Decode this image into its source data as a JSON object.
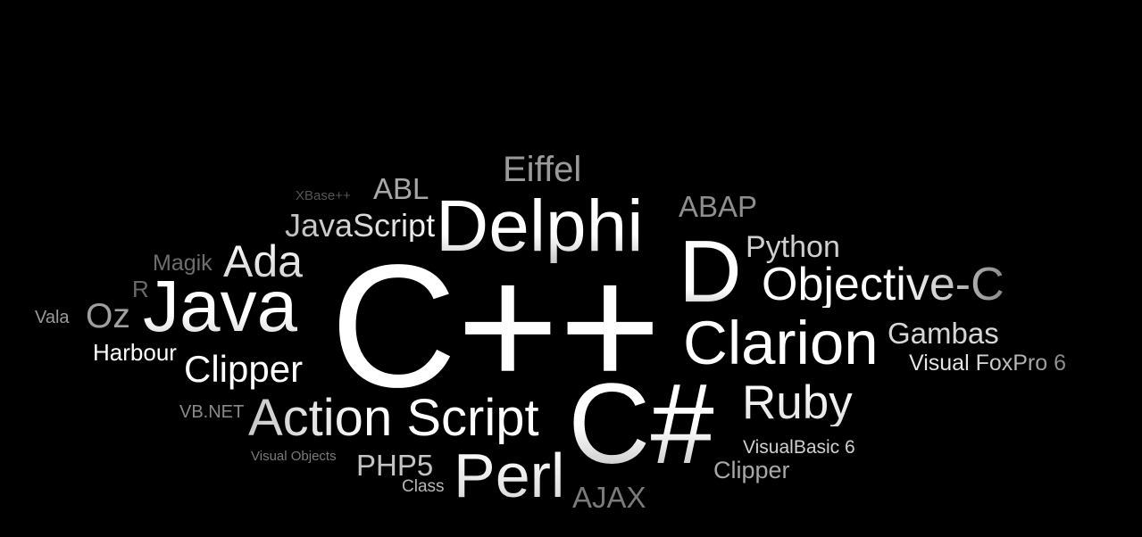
{
  "words": [
    {
      "id": "eiffel",
      "text": "Eiffel"
    },
    {
      "id": "xbase",
      "text": "XBase++"
    },
    {
      "id": "abl",
      "text": "ABL"
    },
    {
      "id": "delphi",
      "text": "Delphi"
    },
    {
      "id": "abap",
      "text": "ABAP"
    },
    {
      "id": "javascript",
      "text": "JavaScript"
    },
    {
      "id": "python",
      "text": "Python"
    },
    {
      "id": "magik",
      "text": "Magik"
    },
    {
      "id": "ada",
      "text": "Ada"
    },
    {
      "id": "d",
      "text": "D"
    },
    {
      "id": "objective-c",
      "text": "Objective-C"
    },
    {
      "id": "r",
      "text": "R"
    },
    {
      "id": "java",
      "text": "Java"
    },
    {
      "id": "cpp",
      "text": "C++"
    },
    {
      "id": "vala",
      "text": "Vala"
    },
    {
      "id": "oz",
      "text": "Oz"
    },
    {
      "id": "gambas",
      "text": "Gambas"
    },
    {
      "id": "clarion",
      "text": "Clarion"
    },
    {
      "id": "harbour",
      "text": "Harbour"
    },
    {
      "id": "visual-foxpro",
      "text": "Visual FoxPro 6"
    },
    {
      "id": "clipper-1",
      "text": "Clipper"
    },
    {
      "id": "ruby",
      "text": "Ruby"
    },
    {
      "id": "vbnet",
      "text": "VB.NET"
    },
    {
      "id": "action-script",
      "text": "Action Script"
    },
    {
      "id": "csharp",
      "text": "C#"
    },
    {
      "id": "visualbasic",
      "text": "VisualBasic 6"
    },
    {
      "id": "visual-objects",
      "text": "Visual Objects"
    },
    {
      "id": "php5",
      "text": "PHP5"
    },
    {
      "id": "perl",
      "text": "Perl"
    },
    {
      "id": "clipper-2",
      "text": "Clipper"
    },
    {
      "id": "class",
      "text": "Class"
    },
    {
      "id": "ajax",
      "text": "AJAX"
    }
  ],
  "colors": {
    "background": "#000000",
    "white": "#ffffff",
    "light": "#d0d0d0",
    "mid": "#9a9a9a",
    "dim": "#6a6a6a"
  }
}
